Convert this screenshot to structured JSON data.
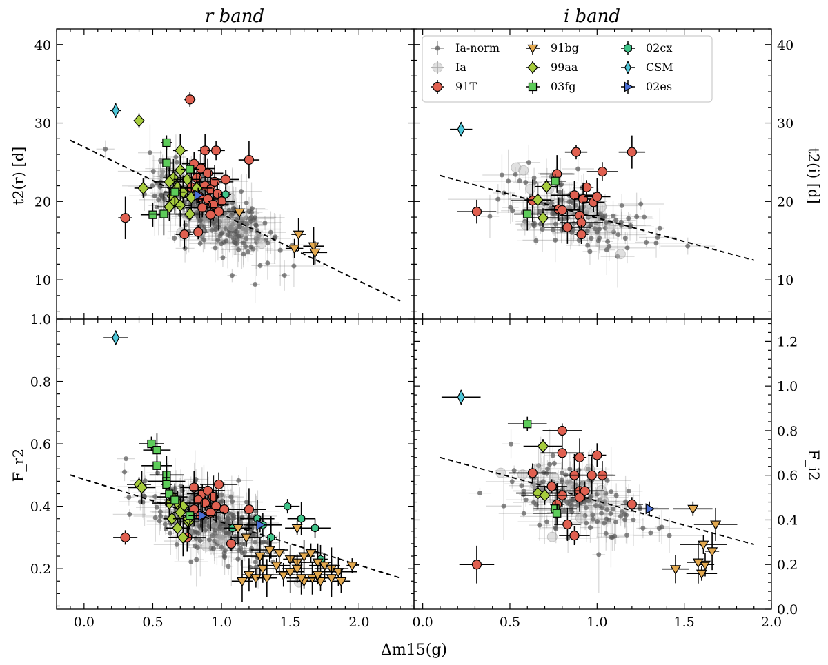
{
  "figure": {
    "shared_xlabel": "Δm15(g)",
    "marker_colors": {
      "Ia-norm": "#555555",
      "Ia": "#bbbbbb",
      "91T": "#e06050",
      "91bg": "#e3a94f",
      "99aa": "#a6cc3d",
      "03fg": "#5dcc5a",
      "02cx": "#3fc489",
      "CSM": "#4ec7d9",
      "02es": "#4a6fd6"
    }
  },
  "legend": {
    "entries": [
      {
        "label": "Ia-norm",
        "marker": "circle-small",
        "color": "#555555"
      },
      {
        "label": "Ia",
        "marker": "circle-light",
        "color": "#bbbbbb"
      },
      {
        "label": "91T",
        "marker": "circle",
        "color": "#e06050"
      },
      {
        "label": "91bg",
        "marker": "triangle-down",
        "color": "#e3a94f"
      },
      {
        "label": "99aa",
        "marker": "diamond",
        "color": "#a6cc3d"
      },
      {
        "label": "03fg",
        "marker": "square",
        "color": "#5dcc5a"
      },
      {
        "label": "02cx",
        "marker": "hexagon",
        "color": "#3fc489"
      },
      {
        "label": "CSM",
        "marker": "thin-diamond",
        "color": "#4ec7d9"
      },
      {
        "label": "02es",
        "marker": "triangle-right",
        "color": "#4a6fd6"
      }
    ]
  },
  "chart_data": [
    {
      "type": "scatter",
      "title": "r band",
      "ylabel": "t2(r) [d]",
      "xlim": [
        -0.2,
        2.4
      ],
      "ylim": [
        5,
        42
      ],
      "yticks": [
        10,
        20,
        30,
        40
      ],
      "ytick_labels": [
        "10",
        "20",
        "30",
        "40"
      ],
      "xticks": [
        0,
        0.5,
        1.0,
        1.5,
        2.0
      ],
      "xtick_labels": [],
      "fit_line": {
        "x": [
          -0.1,
          2.3
        ],
        "y": [
          27.8,
          7.3
        ]
      },
      "series": [
        {
          "name": "91T",
          "points": [
            [
              0.77,
              33.0
            ],
            [
              0.88,
              26.5
            ],
            [
              0.96,
              26.5
            ],
            [
              1.2,
              25.3
            ],
            [
              0.8,
              24.8
            ],
            [
              0.85,
              24.2
            ],
            [
              0.9,
              23.6
            ],
            [
              0.82,
              23.0
            ],
            [
              0.95,
              22.5
            ],
            [
              0.88,
              22.0
            ],
            [
              0.92,
              21.5
            ],
            [
              0.97,
              21.0
            ],
            [
              0.84,
              20.6
            ],
            [
              0.9,
              20.3
            ],
            [
              1.0,
              20.0
            ],
            [
              0.94,
              19.6
            ],
            [
              0.86,
              19.2
            ],
            [
              0.98,
              18.7
            ],
            [
              0.92,
              18.3
            ],
            [
              0.3,
              17.9
            ],
            [
              0.73,
              15.8
            ],
            [
              0.83,
              16.1
            ],
            [
              0.78,
              21.8
            ],
            [
              1.03,
              22.8
            ]
          ]
        },
        {
          "name": "99aa",
          "points": [
            [
              0.4,
              30.3
            ],
            [
              0.7,
              26.5
            ],
            [
              0.43,
              21.7
            ],
            [
              0.65,
              23.0
            ],
            [
              0.7,
              24.0
            ],
            [
              0.75,
              22.8
            ],
            [
              0.62,
              22.5
            ],
            [
              0.68,
              21.8
            ],
            [
              0.72,
              21.2
            ],
            [
              0.64,
              20.7
            ],
            [
              0.78,
              20.5
            ],
            [
              0.66,
              20.0
            ],
            [
              0.7,
              19.5
            ],
            [
              0.62,
              19.3
            ],
            [
              0.77,
              18.4
            ],
            [
              0.82,
              21.7
            ]
          ]
        },
        {
          "name": "03fg",
          "points": [
            [
              0.6,
              27.5
            ],
            [
              0.6,
              24.9
            ],
            [
              0.77,
              24.1
            ],
            [
              0.66,
              21.2
            ],
            [
              0.5,
              18.3
            ],
            [
              0.58,
              18.4
            ]
          ]
        },
        {
          "name": "91bg",
          "points": [
            [
              1.13,
              18.6
            ],
            [
              1.56,
              15.8
            ],
            [
              1.53,
              14.0
            ],
            [
              1.67,
              14.3
            ],
            [
              1.68,
              13.5
            ]
          ]
        },
        {
          "name": "02cx",
          "points": [
            [
              1.03,
              20.9
            ]
          ]
        },
        {
          "name": "CSM",
          "points": [
            [
              0.23,
              31.6
            ]
          ]
        },
        {
          "name": "02es",
          "points": [
            [
              0.83,
              20.8
            ]
          ]
        }
      ]
    },
    {
      "type": "scatter",
      "title": "i band",
      "ylabel": "t2(i) [d]",
      "xlim": [
        -0.05,
        2.0
      ],
      "ylim": [
        5,
        42
      ],
      "yticks": [
        10,
        20,
        30,
        40
      ],
      "ytick_labels": [
        "10",
        "20",
        "30",
        "40"
      ],
      "xticks": [
        0,
        0.5,
        1.0,
        1.5,
        2.0
      ],
      "xtick_labels": [],
      "fit_line": {
        "x": [
          0.1,
          1.9
        ],
        "y": [
          23.3,
          12.5
        ]
      },
      "series": [
        {
          "name": "91T",
          "points": [
            [
              0.88,
              26.3
            ],
            [
              1.2,
              26.3
            ],
            [
              1.03,
              23.8
            ],
            [
              0.77,
              23.5
            ],
            [
              0.31,
              18.7
            ],
            [
              0.63,
              20.1
            ],
            [
              0.87,
              20.8
            ],
            [
              0.94,
              21.8
            ],
            [
              0.92,
              20.3
            ],
            [
              0.98,
              19.9
            ],
            [
              1.0,
              20.6
            ],
            [
              0.78,
              19.0
            ],
            [
              0.8,
              18.9
            ],
            [
              0.9,
              18.2
            ],
            [
              0.91,
              17.3
            ],
            [
              0.83,
              16.7
            ],
            [
              0.91,
              15.8
            ]
          ]
        },
        {
          "name": "99aa",
          "points": [
            [
              0.71,
              21.9
            ],
            [
              0.66,
              20.2
            ],
            [
              0.69,
              17.9
            ]
          ]
        },
        {
          "name": "03fg",
          "points": [
            [
              0.76,
              22.6
            ],
            [
              0.6,
              18.4
            ]
          ]
        },
        {
          "name": "CSM",
          "points": [
            [
              0.22,
              29.2
            ]
          ]
        }
      ]
    },
    {
      "type": "scatter",
      "title": "",
      "ylabel": "F_r2",
      "xlim": [
        -0.2,
        2.4
      ],
      "ylim": [
        0.07,
        1.0
      ],
      "yticks": [
        0.2,
        0.4,
        0.6,
        0.8,
        1.0
      ],
      "ytick_labels": [
        "0.2",
        "0.4",
        "0.6",
        "0.8",
        "1.0"
      ],
      "xticks": [
        0,
        0.5,
        1.0,
        1.5,
        2.0
      ],
      "xtick_labels": [
        "0.0",
        "0.5",
        "1.0",
        "1.5",
        "2.0"
      ],
      "fit_line": {
        "x": [
          -0.1,
          2.3
        ],
        "y": [
          0.5,
          0.17
        ]
      },
      "series": [
        {
          "name": "91T",
          "points": [
            [
              0.3,
              0.3
            ],
            [
              0.8,
              0.46
            ],
            [
              0.86,
              0.44
            ],
            [
              0.9,
              0.45
            ],
            [
              0.98,
              0.47
            ],
            [
              0.94,
              0.43
            ],
            [
              0.83,
              0.42
            ],
            [
              0.88,
              0.41
            ],
            [
              0.96,
              0.4
            ],
            [
              1.02,
              0.39
            ],
            [
              0.92,
              0.38
            ],
            [
              0.85,
              0.37
            ],
            [
              1.2,
              0.39
            ],
            [
              0.75,
              0.3
            ],
            [
              1.07,
              0.28
            ],
            [
              0.8,
              0.39
            ]
          ]
        },
        {
          "name": "99aa",
          "points": [
            [
              0.4,
              0.47
            ],
            [
              0.42,
              0.46
            ],
            [
              0.64,
              0.43
            ],
            [
              0.62,
              0.41
            ],
            [
              0.68,
              0.41
            ],
            [
              0.72,
              0.4
            ],
            [
              0.7,
              0.38
            ],
            [
              0.64,
              0.36
            ],
            [
              0.76,
              0.35
            ],
            [
              0.68,
              0.33
            ],
            [
              0.72,
              0.3
            ],
            [
              0.76,
              0.36
            ]
          ]
        },
        {
          "name": "03fg",
          "points": [
            [
              0.49,
              0.6
            ],
            [
              0.53,
              0.58
            ],
            [
              0.53,
              0.53
            ],
            [
              0.6,
              0.5
            ],
            [
              0.6,
              0.48
            ],
            [
              0.6,
              0.47
            ],
            [
              0.77,
              0.37
            ],
            [
              0.62,
              0.44
            ],
            [
              0.66,
              0.42
            ]
          ]
        },
        {
          "name": "02cx",
          "points": [
            [
              1.48,
              0.4
            ],
            [
              1.58,
              0.36
            ],
            [
              1.68,
              0.33
            ],
            [
              1.26,
              0.36
            ],
            [
              1.3,
              0.34
            ],
            [
              1.36,
              0.3
            ],
            [
              1.72,
              0.23
            ],
            [
              1.08,
              0.33
            ]
          ]
        },
        {
          "name": "91bg",
          "points": [
            [
              1.55,
              0.33
            ],
            [
              1.12,
              0.33
            ],
            [
              1.18,
              0.3
            ],
            [
              1.28,
              0.24
            ],
            [
              1.35,
              0.26
            ],
            [
              1.42,
              0.25
            ],
            [
              1.5,
              0.23
            ],
            [
              1.55,
              0.22
            ],
            [
              1.6,
              0.24
            ],
            [
              1.65,
              0.25
            ],
            [
              1.7,
              0.22
            ],
            [
              1.75,
              0.21
            ],
            [
              1.8,
              0.2
            ],
            [
              1.85,
              0.19
            ],
            [
              1.95,
              0.21
            ],
            [
              1.2,
              0.18
            ],
            [
              1.25,
              0.17
            ],
            [
              1.33,
              0.17
            ],
            [
              1.45,
              0.18
            ],
            [
              1.5,
              0.19
            ],
            [
              1.55,
              0.2
            ],
            [
              1.6,
              0.16
            ],
            [
              1.66,
              0.17
            ],
            [
              1.72,
              0.16
            ],
            [
              1.8,
              0.17
            ],
            [
              1.87,
              0.16
            ],
            [
              1.15,
              0.16
            ],
            [
              1.3,
              0.2
            ],
            [
              1.4,
              0.21
            ],
            [
              1.58,
              0.17
            ],
            [
              1.7,
              0.18
            ]
          ]
        },
        {
          "name": "CSM",
          "points": [
            [
              0.23,
              0.94
            ]
          ]
        },
        {
          "name": "02es",
          "points": [
            [
              1.28,
              0.34
            ],
            [
              0.86,
              0.37
            ]
          ]
        }
      ]
    },
    {
      "type": "scatter",
      "title": "",
      "ylabel": "F_i2",
      "xlim": [
        -0.05,
        2.0
      ],
      "ylim": [
        0.0,
        1.3
      ],
      "yticks": [
        0,
        0.2,
        0.4,
        0.6,
        0.8,
        1.0,
        1.2
      ],
      "ytick_labels": [
        "0.0",
        "0.2",
        "0.4",
        "0.6",
        "0.8",
        "1.0",
        "1.2"
      ],
      "xticks": [
        0,
        0.5,
        1.0,
        1.5,
        2.0
      ],
      "xtick_labels": [
        "0.0",
        "0.5",
        "1.0",
        "1.5",
        "2.0"
      ],
      "fit_line": {
        "x": [
          0.1,
          1.9
        ],
        "y": [
          0.68,
          0.29
        ]
      },
      "series": [
        {
          "name": "91T",
          "points": [
            [
              0.8,
              0.8
            ],
            [
              0.8,
              0.7
            ],
            [
              0.63,
              0.61
            ],
            [
              0.9,
              0.68
            ],
            [
              1.0,
              0.69
            ],
            [
              0.87,
              0.6
            ],
            [
              1.03,
              0.6
            ],
            [
              0.74,
              0.55
            ],
            [
              0.9,
              0.53
            ],
            [
              0.93,
              0.53
            ],
            [
              0.97,
              0.6
            ],
            [
              0.8,
              0.51
            ],
            [
              0.77,
              0.47
            ],
            [
              0.9,
              0.5
            ],
            [
              1.2,
              0.47
            ],
            [
              0.83,
              0.38
            ],
            [
              0.87,
              0.33
            ],
            [
              0.31,
              0.2
            ]
          ]
        },
        {
          "name": "99aa",
          "points": [
            [
              0.69,
              0.73
            ],
            [
              0.66,
              0.52
            ],
            [
              0.7,
              0.51
            ]
          ]
        },
        {
          "name": "03fg",
          "points": [
            [
              0.6,
              0.83
            ],
            [
              0.76,
              0.45
            ],
            [
              0.77,
              0.43
            ]
          ]
        },
        {
          "name": "91bg",
          "points": [
            [
              1.55,
              0.45
            ],
            [
              1.68,
              0.38
            ],
            [
              1.61,
              0.29
            ],
            [
              1.66,
              0.26
            ],
            [
              1.62,
              0.2
            ],
            [
              1.58,
              0.21
            ],
            [
              1.45,
              0.18
            ],
            [
              1.6,
              0.16
            ]
          ]
        },
        {
          "name": "CSM",
          "points": [
            [
              0.22,
              0.95
            ]
          ]
        },
        {
          "name": "02es",
          "points": [
            [
              1.3,
              0.45
            ]
          ]
        }
      ]
    }
  ]
}
